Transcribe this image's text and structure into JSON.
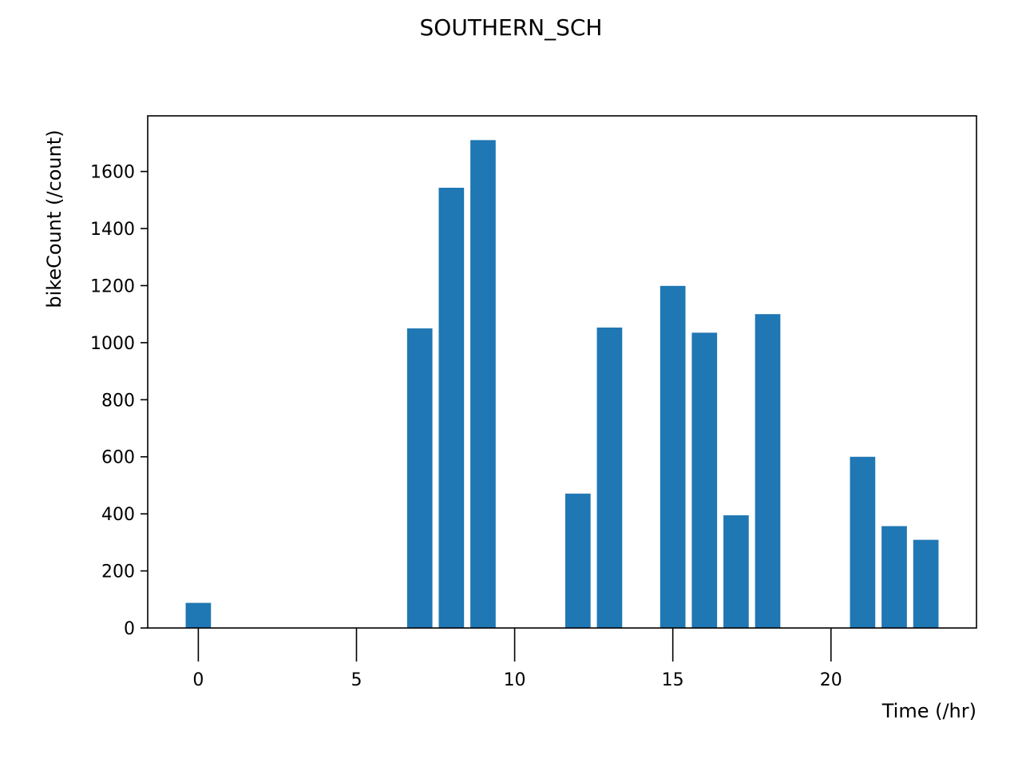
{
  "chart_data": {
    "type": "bar",
    "title": "SOUTHERN_SCH",
    "xlabel": "Time (/hr)",
    "ylabel": "bikeCount (/count)",
    "x": [
      0,
      7,
      8,
      9,
      12,
      13,
      15,
      16,
      17,
      18,
      21,
      22,
      23
    ],
    "values": [
      88,
      1050,
      1543,
      1710,
      471,
      1053,
      1199,
      1035,
      395,
      1100,
      600,
      357,
      309
    ],
    "xlim": [
      -1.6,
      24.6
    ],
    "ylim": [
      0,
      1795
    ],
    "xticks": [
      0,
      5,
      10,
      15,
      20
    ],
    "yticks": [
      0,
      200,
      400,
      600,
      800,
      1000,
      1200,
      1400,
      1600
    ],
    "bar_color": "#1f77b4",
    "grid": false,
    "legend": "none"
  }
}
